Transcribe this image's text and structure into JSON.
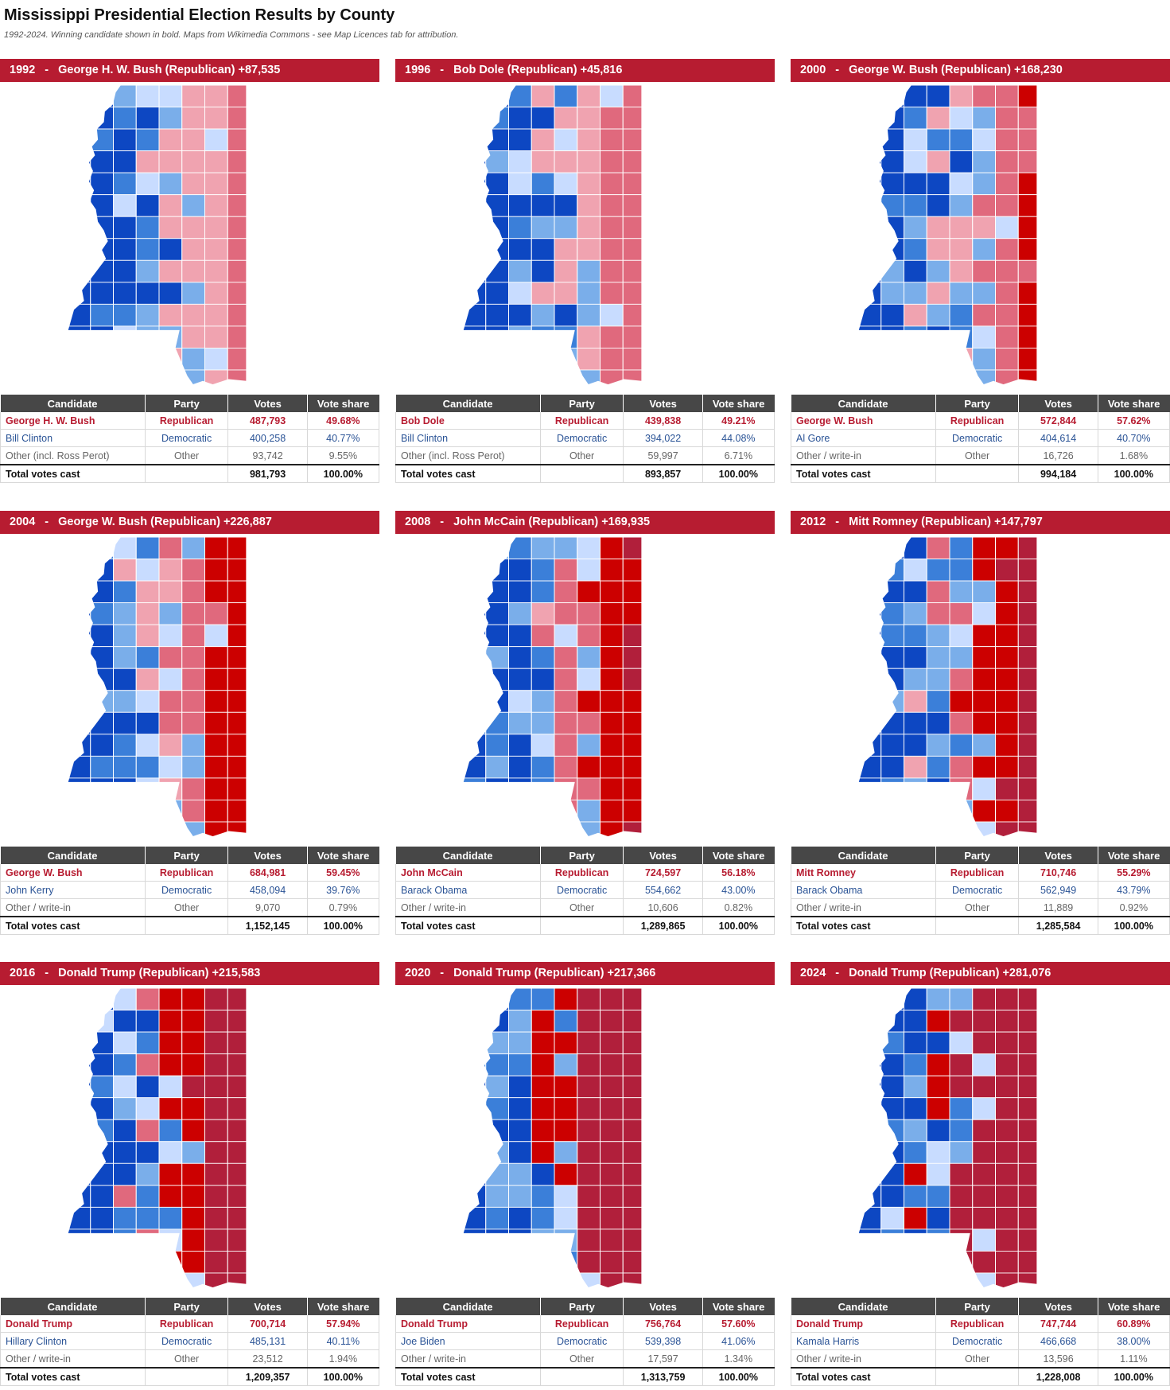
{
  "title": "Mississippi Presidential Election Results by County",
  "subtitle": "1992-2024. Winning candidate shown in bold. Maps from Wikimedia Commons - see Map Licences tab for attribution.",
  "columns": [
    "Candidate",
    "Party",
    "Votes",
    "Vote share"
  ],
  "colors": {
    "header_red": "#b71c31",
    "table_header": "#474747",
    "republican_text": "#b71c31",
    "democratic_text": "#2a5396",
    "map_palette": [
      "#b11f3b",
      "#cc0000",
      "#e0697d",
      "#f0a3b0",
      "#c8dcff",
      "#7aaeea",
      "#3b7fd9",
      "#0d47c2"
    ]
  },
  "panels": [
    {
      "year": "1992",
      "headline": "George H. W. Bush (Republican) +87,535",
      "rows": [
        {
          "candidate": "George H. W. Bush",
          "party": "Republican",
          "votes": "487,793",
          "share": "49.68%"
        },
        {
          "candidate": "Bill Clinton",
          "party": "Democratic",
          "votes": "400,258",
          "share": "40.77%"
        },
        {
          "candidate": "Other (incl. Ross Perot)",
          "party": "Other",
          "votes": "93,742",
          "share": "9.55%"
        }
      ],
      "total": {
        "label": "Total votes cast",
        "votes": "981,793",
        "share": "100.00%"
      }
    },
    {
      "year": "1996",
      "headline": "Bob Dole (Republican) +45,816",
      "rows": [
        {
          "candidate": "Bob Dole",
          "party": "Republican",
          "votes": "439,838",
          "share": "49.21%"
        },
        {
          "candidate": "Bill Clinton",
          "party": "Democratic",
          "votes": "394,022",
          "share": "44.08%"
        },
        {
          "candidate": "Other (incl. Ross Perot)",
          "party": "Other",
          "votes": "59,997",
          "share": "6.71%"
        }
      ],
      "total": {
        "label": "Total votes cast",
        "votes": "893,857",
        "share": "100.00%"
      }
    },
    {
      "year": "2000",
      "headline": "George W. Bush (Republican) +168,230",
      "rows": [
        {
          "candidate": "George W. Bush",
          "party": "Republican",
          "votes": "572,844",
          "share": "57.62%"
        },
        {
          "candidate": "Al Gore",
          "party": "Democratic",
          "votes": "404,614",
          "share": "40.70%"
        },
        {
          "candidate": "Other / write-in",
          "party": "Other",
          "votes": "16,726",
          "share": "1.68%"
        }
      ],
      "total": {
        "label": "Total votes cast",
        "votes": "994,184",
        "share": "100.00%"
      }
    },
    {
      "year": "2004",
      "headline": "George W. Bush (Republican) +226,887",
      "rows": [
        {
          "candidate": "George W. Bush",
          "party": "Republican",
          "votes": "684,981",
          "share": "59.45%"
        },
        {
          "candidate": "John Kerry",
          "party": "Democratic",
          "votes": "458,094",
          "share": "39.76%"
        },
        {
          "candidate": "Other / write-in",
          "party": "Other",
          "votes": "9,070",
          "share": "0.79%"
        }
      ],
      "total": {
        "label": "Total votes cast",
        "votes": "1,152,145",
        "share": "100.00%"
      }
    },
    {
      "year": "2008",
      "headline": "John McCain (Republican) +169,935",
      "rows": [
        {
          "candidate": "John McCain",
          "party": "Republican",
          "votes": "724,597",
          "share": "56.18%"
        },
        {
          "candidate": "Barack Obama",
          "party": "Democratic",
          "votes": "554,662",
          "share": "43.00%"
        },
        {
          "candidate": "Other / write-in",
          "party": "Other",
          "votes": "10,606",
          "share": "0.82%"
        }
      ],
      "total": {
        "label": "Total votes cast",
        "votes": "1,289,865",
        "share": "100.00%"
      }
    },
    {
      "year": "2012",
      "headline": "Mitt Romney (Republican) +147,797",
      "rows": [
        {
          "candidate": "Mitt Romney",
          "party": "Republican",
          "votes": "710,746",
          "share": "55.29%"
        },
        {
          "candidate": "Barack Obama",
          "party": "Democratic",
          "votes": "562,949",
          "share": "43.79%"
        },
        {
          "candidate": "Other / write-in",
          "party": "Other",
          "votes": "11,889",
          "share": "0.92%"
        }
      ],
      "total": {
        "label": "Total votes cast",
        "votes": "1,285,584",
        "share": "100.00%"
      }
    },
    {
      "year": "2016",
      "headline": "Donald Trump (Republican) +215,583",
      "rows": [
        {
          "candidate": "Donald Trump",
          "party": "Republican",
          "votes": "700,714",
          "share": "57.94%"
        },
        {
          "candidate": "Hillary Clinton",
          "party": "Democratic",
          "votes": "485,131",
          "share": "40.11%"
        },
        {
          "candidate": "Other / write-in",
          "party": "Other",
          "votes": "23,512",
          "share": "1.94%"
        }
      ],
      "total": {
        "label": "Total votes cast",
        "votes": "1,209,357",
        "share": "100.00%"
      }
    },
    {
      "year": "2020",
      "headline": "Donald Trump (Republican) +217,366",
      "rows": [
        {
          "candidate": "Donald Trump",
          "party": "Republican",
          "votes": "756,764",
          "share": "57.60%"
        },
        {
          "candidate": "Joe Biden",
          "party": "Democratic",
          "votes": "539,398",
          "share": "41.06%"
        },
        {
          "candidate": "Other / write-in",
          "party": "Other",
          "votes": "17,597",
          "share": "1.34%"
        }
      ],
      "total": {
        "label": "Total votes cast",
        "votes": "1,313,759",
        "share": "100.00%"
      }
    },
    {
      "year": "2024",
      "headline": "Donald Trump (Republican) +281,076",
      "rows": [
        {
          "candidate": "Donald Trump",
          "party": "Republican",
          "votes": "747,744",
          "share": "60.89%"
        },
        {
          "candidate": "Kamala Harris",
          "party": "Democratic",
          "votes": "466,668",
          "share": "38.00%"
        },
        {
          "candidate": "Other / write-in",
          "party": "Other",
          "votes": "13,596",
          "share": "1.11%"
        }
      ],
      "total": {
        "label": "Total votes cast",
        "votes": "1,228,008",
        "share": "100.00%"
      }
    }
  ]
}
